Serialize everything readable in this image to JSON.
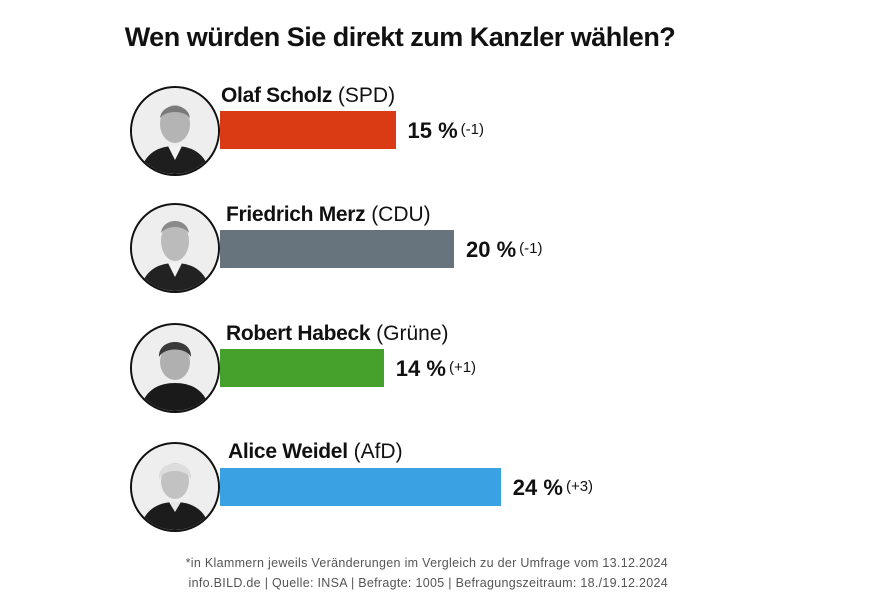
{
  "chart_data": {
    "type": "bar",
    "orientation": "horizontal",
    "title": "Wen würden Sie direkt zum Kanzler wählen?",
    "unit": "%",
    "categories": [
      "Olaf Scholz",
      "Friedrich Merz",
      "Robert Habeck",
      "Alice Weidel"
    ],
    "values": [
      15,
      20,
      14,
      24
    ],
    "series": [
      {
        "name": "Olaf Scholz",
        "party": "(SPD)",
        "value": 15,
        "value_label": "15 %",
        "change": "(-1)",
        "color": "#da3a14"
      },
      {
        "name": "Friedrich Merz",
        "party": "(CDU)",
        "value": 20,
        "value_label": "20 %",
        "change": "(-1)",
        "color": "#67737d"
      },
      {
        "name": "Robert Habeck",
        "party": "(Grüne)",
        "value": 14,
        "value_label": "14 %",
        "change": "(+1)",
        "color": "#45a12c"
      },
      {
        "name": "Alice Weidel",
        "party": "(AfD)",
        "value": 24,
        "value_label": "24 %",
        "change": "(+3)",
        "color": "#3aa2e3"
      }
    ]
  },
  "footnotes": {
    "line1": "*in Klammern jeweils Veränderungen im Vergleich zu der Umfrage vom 13.12.2024",
    "line2": "info.BILD.de | Quelle: INSA | Befragte: 1005 | Befragungszeitraum: 18./19.12.2024"
  }
}
